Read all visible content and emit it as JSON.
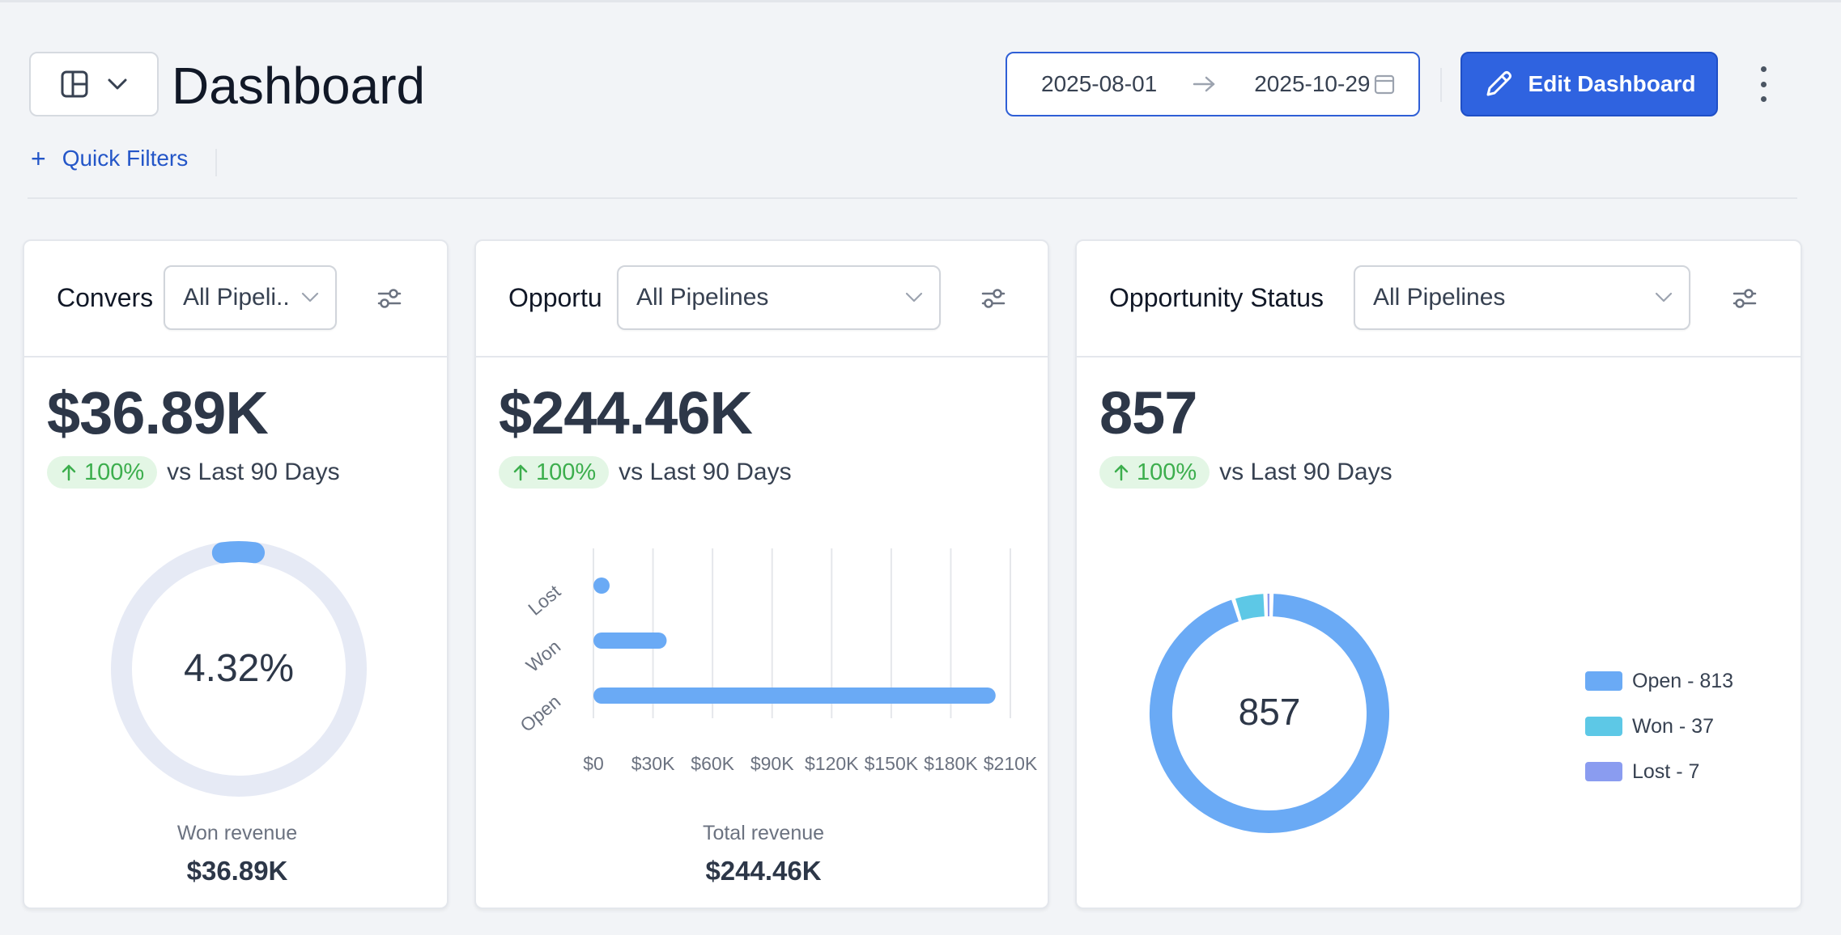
{
  "header": {
    "title": "Dashboard",
    "date_start": "2025-08-01",
    "date_end": "2025-10-29",
    "edit_label": "Edit Dashboard",
    "quick_filters_label": "Quick Filters",
    "quick_filters_plus": "+"
  },
  "cards": [
    {
      "title": "Conversion Rate",
      "title_visible": "Convers",
      "pipeline": "All Pipeli...",
      "value": "$36.89K",
      "trend_pct": "100%",
      "trend_label": "vs Last 90 Days",
      "gauge_label": "4.32%",
      "gauge_fraction": 0.0432,
      "footer_label": "Won revenue",
      "footer_value": "$36.89K"
    },
    {
      "title_visible": "Opportu",
      "pipeline": "All Pipelines",
      "value": "$244.46K",
      "trend_pct": "100%",
      "trend_label": "vs Last 90 Days",
      "footer_label": "Total revenue",
      "footer_value": "$244.46K"
    },
    {
      "title_visible": "Opportunity Status",
      "pipeline": "All Pipelines",
      "value": "857",
      "trend_pct": "100%",
      "trend_label": "vs Last 90 Days",
      "donut_center": "857"
    }
  ],
  "chart_data": [
    {
      "type": "bar",
      "orientation": "horizontal",
      "categories": [
        "Lost",
        "Won",
        "Open"
      ],
      "values": [
        5000,
        36890,
        202570
      ],
      "x_ticks": [
        "$0",
        "$30K",
        "$60K",
        "$90K",
        "$120K",
        "$150K",
        "$180K",
        "$210K"
      ],
      "xlim": [
        0,
        210000
      ],
      "color": "#6aaaf5",
      "grid": true
    },
    {
      "type": "pie",
      "donut": true,
      "center_label": "857",
      "slices": [
        {
          "label": "Open - 813",
          "value": 813,
          "color": "#6aaaf5"
        },
        {
          "label": "Won - 37",
          "value": 37,
          "color": "#5dc8e6"
        },
        {
          "label": "Lost - 7",
          "value": 7,
          "color": "#8a9cf0"
        }
      ]
    }
  ]
}
